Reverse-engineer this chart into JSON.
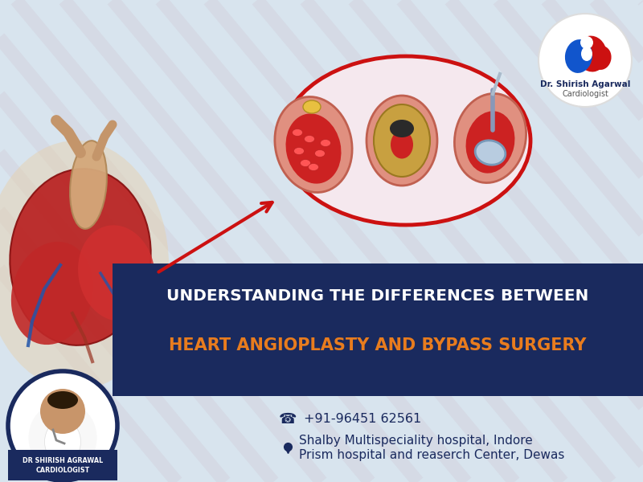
{
  "bg_color": "#d8e4ee",
  "banner_color": "#1a2a5e",
  "title_line1": "UNDERSTANDING THE DIFFERENCES BETWEEN",
  "title_line2": "HEART ANGIOPLASTY AND BYPASS SURGERY",
  "title_line1_color": "#ffffff",
  "title_line2_color": "#e87c1e",
  "phone": "+91-96451 62561",
  "hospital1": "Shalby Multispeciality hospital, Indore",
  "hospital2": "Prism hospital and reaserch Center, Dewas",
  "contact_color": "#1a2a5e",
  "doctor_name": "DR SHIRISH AGRAWAL",
  "doctor_title": "CARDIOLOGIST",
  "logo_name": "Dr. Shirish Agarwal",
  "logo_subtitle": "Cardiologist",
  "arrow_color": "#cc1111",
  "ellipse_color": "#cc1111"
}
